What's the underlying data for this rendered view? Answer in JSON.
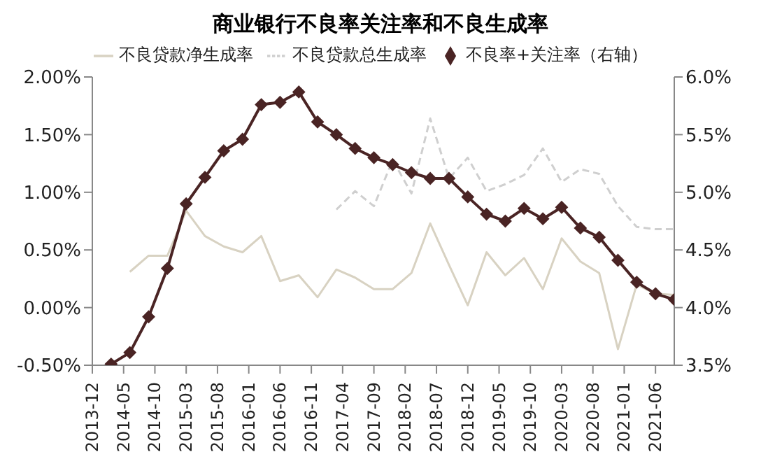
{
  "chart_data": {
    "type": "line",
    "title": "商业银行不良率关注率和不良生成率",
    "x": [
      "2014-03",
      "2014-06",
      "2014-09",
      "2014-12",
      "2015-03",
      "2015-06",
      "2015-09",
      "2015-12",
      "2016-03",
      "2016-06",
      "2016-09",
      "2016-12",
      "2017-03",
      "2017-06",
      "2017-09",
      "2017-12",
      "2018-03",
      "2018-06",
      "2018-09",
      "2018-12",
      "2019-03",
      "2019-06",
      "2019-09",
      "2019-12",
      "2020-03",
      "2020-06",
      "2020-09",
      "2020-12",
      "2021-03",
      "2021-06",
      "2021-09"
    ],
    "series": [
      {
        "name": "不良贷款净生成率",
        "color": "#d8d2c2",
        "line_style": "solid",
        "marker": "none",
        "values": [
          null,
          0.31,
          0.45,
          0.45,
          0.84,
          0.62,
          0.53,
          0.48,
          0.62,
          0.23,
          0.28,
          0.09,
          0.33,
          0.26,
          0.16,
          0.16,
          0.3,
          0.73,
          0.37,
          0.02,
          0.48,
          0.28,
          0.43,
          0.16,
          0.6,
          0.4,
          0.3,
          -0.36,
          0.2,
          0.12,
          0.11
        ]
      },
      {
        "name": "不良贷款总生成率",
        "color": "#cfcfcf",
        "line_style": "dashed",
        "marker": "none",
        "values": [
          null,
          null,
          null,
          null,
          null,
          null,
          null,
          null,
          null,
          null,
          null,
          null,
          0.85,
          1.01,
          0.88,
          1.28,
          0.99,
          1.64,
          1.12,
          1.3,
          1.01,
          1.07,
          1.15,
          1.38,
          1.09,
          1.2,
          1.16,
          0.88,
          0.7,
          0.68,
          0.68
        ]
      },
      {
        "name": "不良率+关注率（右轴）",
        "color": "#4a2424",
        "line_style": "solid",
        "marker": "diamond",
        "axis": "y2",
        "values": [
          3.51,
          3.61,
          3.92,
          4.34,
          4.9,
          5.13,
          5.36,
          5.46,
          5.76,
          5.78,
          5.87,
          5.61,
          5.5,
          5.38,
          5.3,
          5.24,
          5.17,
          5.12,
          5.12,
          4.96,
          4.81,
          4.75,
          4.86,
          4.77,
          4.87,
          4.69,
          4.61,
          4.41,
          4.22,
          4.12,
          4.07
        ]
      }
    ],
    "xlim": [
      "2013-12",
      "2021-09"
    ],
    "xticks": [
      "2013-12",
      "2014-05",
      "2014-10",
      "2015-03",
      "2015-08",
      "2016-01",
      "2016-06",
      "2016-11",
      "2017-04",
      "2017-09",
      "2018-02",
      "2018-07",
      "2018-12",
      "2019-05",
      "2019-10",
      "2020-03",
      "2020-08",
      "2021-01",
      "2021-06"
    ],
    "ylim": [
      -0.5,
      2.0
    ],
    "yticks": [
      {
        "value": -0.5,
        "label": "-0.50%"
      },
      {
        "value": 0,
        "label": "0.00%"
      },
      {
        "value": 0.5,
        "label": "0.50%"
      },
      {
        "value": 1.0,
        "label": "1.00%"
      },
      {
        "value": 1.5,
        "label": "1.50%"
      },
      {
        "value": 2.0,
        "label": "2.00%"
      }
    ],
    "y2lim": [
      3.5,
      6.0
    ],
    "y2ticks": [
      {
        "value": 3.5,
        "label": "3.5%"
      },
      {
        "value": 4.0,
        "label": "4.0%"
      },
      {
        "value": 4.5,
        "label": "4.5%"
      },
      {
        "value": 5.0,
        "label": "5.0%"
      },
      {
        "value": 5.5,
        "label": "5.5%"
      },
      {
        "value": 6.0,
        "label": "6.0%"
      }
    ],
    "grid": false,
    "legend": "top"
  }
}
